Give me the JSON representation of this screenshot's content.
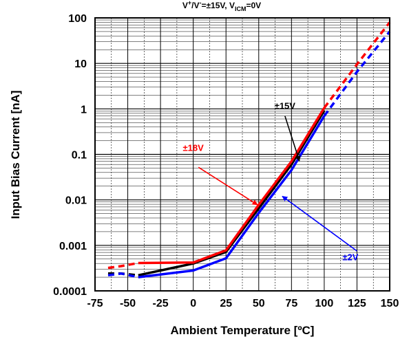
{
  "chart_data": {
    "type": "line",
    "title_prefix": "V",
    "title_sup_plus": "+",
    "title_mid": "/V",
    "title_sup_minus": "-",
    "title_eq": "=±15V, V",
    "title_sub": "ICM",
    "title_end": "=0V",
    "xlabel": "Ambient Temperature [ºC]",
    "ylabel": "Input Bias Current [nA]",
    "xlim": [
      -75,
      150
    ],
    "ylim": [
      0.0001,
      100
    ],
    "yscale": "log",
    "grid": true,
    "x_ticks": [
      -75,
      -50,
      -25,
      0,
      25,
      50,
      75,
      100,
      125,
      150
    ],
    "x_tick_labels": [
      "-75",
      "-50",
      "-25",
      "0",
      "25",
      "50",
      "75",
      "100",
      "125",
      "150"
    ],
    "y_ticks": [
      0.0001,
      0.001,
      0.01,
      0.1,
      1,
      10,
      100
    ],
    "y_tick_labels": [
      "0.0001",
      "0.001",
      "0.01",
      "0.1",
      "1",
      "10",
      "100"
    ],
    "series": [
      {
        "name": "±15V",
        "color": "#000000",
        "dashed_x": [
          -65,
          -55,
          -42
        ],
        "dashed_y": [
          0.00024,
          0.00024,
          0.00022
        ],
        "solid_x": [
          -42,
          0,
          25,
          50,
          75,
          100
        ],
        "solid_y": [
          0.00022,
          0.0004,
          0.00072,
          0.0065,
          0.06,
          0.92
        ]
      },
      {
        "name": "±18V",
        "color": "#ff0000",
        "dashed_x": [
          -65,
          -55,
          -42,
          100,
          125,
          150
        ],
        "dashed_y": [
          0.00032,
          0.00035,
          0.00041,
          1.05,
          9.5,
          80
        ],
        "solid_x": [
          -42,
          0,
          25,
          50,
          75,
          100
        ],
        "solid_y": [
          0.00041,
          0.00042,
          0.00078,
          0.0078,
          0.07,
          1.05
        ]
      },
      {
        "name": "±2V",
        "color": "#0000ff",
        "dashed_x": [
          -65,
          -55,
          -42,
          100,
          125,
          150
        ],
        "dashed_y": [
          0.00022,
          0.00024,
          0.0002,
          0.7,
          6.5,
          50
        ],
        "solid_x": [
          -42,
          0,
          25,
          50,
          75,
          100
        ],
        "solid_y": [
          0.0002,
          0.00028,
          0.00052,
          0.0052,
          0.045,
          0.7
        ]
      }
    ],
    "annotations": [
      {
        "text": "±15V",
        "color": "#000000",
        "label_x": 70,
        "label_y": 1.0,
        "arrow_from_x": 70,
        "arrow_from_y": 0.7,
        "arrow_to_x": 81,
        "arrow_to_y": 0.072
      },
      {
        "text": "±18V",
        "color": "#ff0000",
        "label_x": 0,
        "label_y": 0.12,
        "arrow_from_x": 4,
        "arrow_from_y": 0.052,
        "arrow_to_x": 49,
        "arrow_to_y": 0.0078
      },
      {
        "text": "±2V",
        "color": "#0000ff",
        "label_x": 120,
        "label_y": 0.00047,
        "arrow_from_x": 125,
        "arrow_from_y": 0.00075,
        "arrow_to_x": 68,
        "arrow_to_y": 0.012
      }
    ]
  }
}
